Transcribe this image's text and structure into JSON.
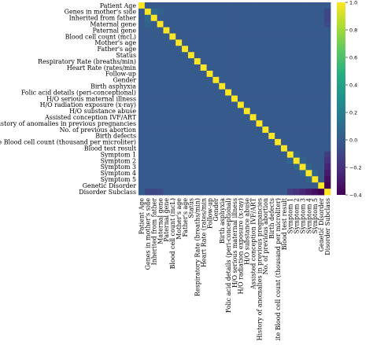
{
  "chart_data": {
    "type": "heatmap",
    "title": "",
    "xlabel": "",
    "ylabel": "",
    "labels": [
      "Patient Age",
      "Genes in mother's side",
      "Inherited from father",
      "Maternal gene",
      "Paternal gene",
      "Blood cell count (mcL)",
      "Mother's age",
      "Father's age",
      "Status",
      "Respiratory Rate (breaths/min)",
      "Heart Rate (rates/min",
      "Follow-up",
      "Gender",
      "Birth asphyxia",
      "Folic acid details (peri-conceptional)",
      "H/O serious maternal illness",
      "H/O radiation exposure (x-ray)",
      "H/O substance abuse",
      "Assisted conception IVF/ART",
      "History of anomalies in previous pregnancies",
      "No. of previous abortion",
      "Birth defects",
      "White Blood cell count (thousand per microliter)",
      "Blood test result",
      "Symptom 1",
      "Symptom 2",
      "Symptom 3",
      "Symptom 4",
      "Symptom 5",
      "Genetic Disorder",
      "Disorder Subclass"
    ],
    "diagonal_value": 1.0,
    "off_diagonal_default": 0.0,
    "notable_correlations": [
      {
        "a": "Genes in mother's side",
        "b": "Inherited from father",
        "value": 0.08
      },
      {
        "a": "Genes in mother's side",
        "b": "Maternal gene",
        "value": 0.05
      },
      {
        "a": "Symptom 1",
        "b": "Symptom 2",
        "value": 0.06
      },
      {
        "a": "Symptom 2",
        "b": "Symptom 3",
        "value": 0.06
      },
      {
        "a": "Symptom 3",
        "b": "Symptom 4",
        "value": 0.06
      },
      {
        "a": "Symptom 4",
        "b": "Symptom 5",
        "value": 0.06
      },
      {
        "a": "Genes in mother's side",
        "b": "Disorder Subclass",
        "value": -0.1
      },
      {
        "a": "Inherited from father",
        "b": "Disorder Subclass",
        "value": -0.1
      },
      {
        "a": "Maternal gene",
        "b": "Disorder Subclass",
        "value": -0.08
      },
      {
        "a": "Symptom 1",
        "b": "Disorder Subclass",
        "value": -0.15
      },
      {
        "a": "Symptom 2",
        "b": "Disorder Subclass",
        "value": -0.2
      },
      {
        "a": "Symptom 3",
        "b": "Disorder Subclass",
        "value": -0.25
      },
      {
        "a": "Symptom 4",
        "b": "Disorder Subclass",
        "value": -0.3
      },
      {
        "a": "Symptom 5",
        "b": "Disorder Subclass",
        "value": -0.35
      },
      {
        "a": "Genetic Disorder",
        "b": "Disorder Subclass",
        "value": -0.45
      }
    ],
    "colorbar": {
      "colormap": "viridis",
      "range": [
        -0.4,
        1.0
      ],
      "ticks": [
        -0.4,
        -0.2,
        0.0,
        0.2,
        0.4,
        0.6,
        0.8,
        1.0
      ],
      "tick_labels": [
        "−0.4",
        "−0.2",
        "0.0",
        "0.2",
        "0.4",
        "0.6",
        "0.8",
        "1.0"
      ]
    },
    "grid": false,
    "legend": "none"
  }
}
